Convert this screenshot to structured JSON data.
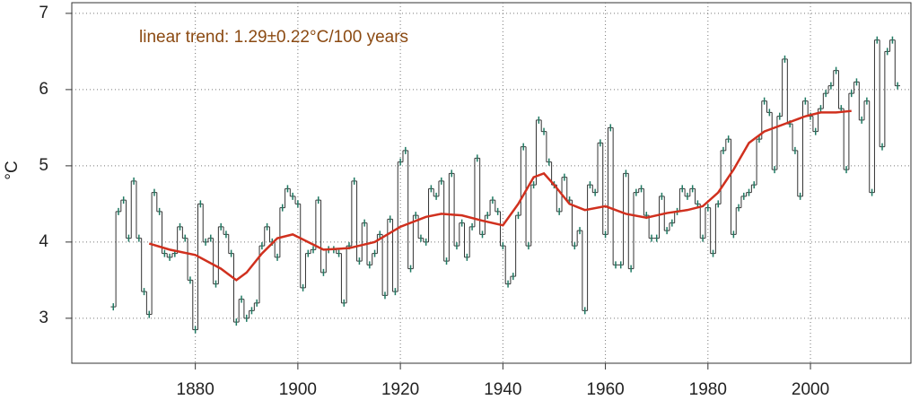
{
  "chart_data": {
    "type": "step",
    "annotation": "linear trend: 1.29±0.22°C/100 years",
    "ylabel": "°C",
    "x": [
      1864,
      1865,
      1866,
      1867,
      1868,
      1869,
      1870,
      1871,
      1872,
      1873,
      1874,
      1875,
      1876,
      1877,
      1878,
      1879,
      1880,
      1881,
      1882,
      1883,
      1884,
      1885,
      1886,
      1887,
      1888,
      1889,
      1890,
      1891,
      1892,
      1893,
      1894,
      1895,
      1896,
      1897,
      1898,
      1899,
      1900,
      1901,
      1902,
      1903,
      1904,
      1905,
      1906,
      1907,
      1908,
      1909,
      1910,
      1911,
      1912,
      1913,
      1914,
      1915,
      1916,
      1917,
      1918,
      1919,
      1920,
      1921,
      1922,
      1923,
      1924,
      1925,
      1926,
      1927,
      1928,
      1929,
      1930,
      1931,
      1932,
      1933,
      1934,
      1935,
      1936,
      1937,
      1938,
      1939,
      1940,
      1941,
      1942,
      1943,
      1944,
      1945,
      1946,
      1947,
      1948,
      1949,
      1950,
      1951,
      1952,
      1953,
      1954,
      1955,
      1956,
      1957,
      1958,
      1959,
      1960,
      1961,
      1962,
      1963,
      1964,
      1965,
      1966,
      1967,
      1968,
      1969,
      1970,
      1971,
      1972,
      1973,
      1974,
      1975,
      1976,
      1977,
      1978,
      1979,
      1980,
      1981,
      1982,
      1983,
      1984,
      1985,
      1986,
      1987,
      1988,
      1989,
      1990,
      1991,
      1992,
      1993,
      1994,
      1995,
      1996,
      1997,
      1998,
      1999,
      2000,
      2001,
      2002,
      2003,
      2004,
      2005,
      2006,
      2007,
      2008,
      2009,
      2010,
      2011,
      2012,
      2013,
      2014,
      2015,
      2016,
      2017
    ],
    "values": [
      3.15,
      4.4,
      4.55,
      4.05,
      4.8,
      4.05,
      3.35,
      3.05,
      4.65,
      4.4,
      3.85,
      3.8,
      3.85,
      4.2,
      4.05,
      3.5,
      2.85,
      4.5,
      4.0,
      4.05,
      3.45,
      4.2,
      4.1,
      3.85,
      2.95,
      3.25,
      3.0,
      3.1,
      3.2,
      3.95,
      4.2,
      4.0,
      3.8,
      4.45,
      4.7,
      4.6,
      4.5,
      3.4,
      3.85,
      3.9,
      4.55,
      3.6,
      3.9,
      3.9,
      3.85,
      3.2,
      3.95,
      4.8,
      3.75,
      4.25,
      3.7,
      3.85,
      4.1,
      3.3,
      4.3,
      3.35,
      5.05,
      5.2,
      3.65,
      4.35,
      4.05,
      4.0,
      4.7,
      4.6,
      4.8,
      3.75,
      4.9,
      3.95,
      4.25,
      3.8,
      4.2,
      5.1,
      4.1,
      4.35,
      4.55,
      4.4,
      3.95,
      3.45,
      3.55,
      4.35,
      5.25,
      3.95,
      4.75,
      5.6,
      5.45,
      5.05,
      4.75,
      4.4,
      4.85,
      4.55,
      3.95,
      4.15,
      3.1,
      4.75,
      4.65,
      5.3,
      4.1,
      5.5,
      3.7,
      3.7,
      4.9,
      3.65,
      4.65,
      4.7,
      4.35,
      4.05,
      4.05,
      4.6,
      4.15,
      4.25,
      4.4,
      4.7,
      4.6,
      4.7,
      4.5,
      4.05,
      4.45,
      3.85,
      4.5,
      5.2,
      5.35,
      4.1,
      4.45,
      4.6,
      4.65,
      4.75,
      5.35,
      5.85,
      5.7,
      4.95,
      5.65,
      6.4,
      5.55,
      5.2,
      4.6,
      5.85,
      5.65,
      5.45,
      5.75,
      5.95,
      6.05,
      6.25,
      5.75,
      4.95,
      5.95,
      6.1,
      5.6,
      5.85,
      4.65,
      6.65,
      5.25,
      6.5,
      6.65,
      6.05
    ],
    "color": "#333333",
    "marker_color": "#1f7a63",
    "smooth": {
      "color": "#d0301e",
      "x": [
        1871,
        1875,
        1880,
        1885,
        1888,
        1890,
        1893,
        1896,
        1899,
        1902,
        1905,
        1910,
        1915,
        1920,
        1925,
        1928,
        1932,
        1936,
        1940,
        1943,
        1946,
        1948,
        1950,
        1953,
        1956,
        1960,
        1964,
        1968,
        1972,
        1976,
        1979,
        1982,
        1985,
        1988,
        1991,
        1995,
        1999,
        2002,
        2005,
        2008
      ],
      "values": [
        3.98,
        3.9,
        3.83,
        3.65,
        3.5,
        3.6,
        3.85,
        4.05,
        4.1,
        4.0,
        3.9,
        3.92,
        4.0,
        4.2,
        4.33,
        4.37,
        4.35,
        4.28,
        4.22,
        4.5,
        4.85,
        4.9,
        4.75,
        4.5,
        4.42,
        4.47,
        4.37,
        4.32,
        4.38,
        4.42,
        4.47,
        4.65,
        4.95,
        5.3,
        5.45,
        5.55,
        5.65,
        5.7,
        5.7,
        5.72
      ]
    },
    "xlim": [
      1855.9,
      2019.6
    ],
    "ylim": [
      2.41,
      7.14
    ],
    "xticks": [
      1880,
      1900,
      1920,
      1940,
      1960,
      1980,
      2000
    ],
    "yticks": [
      3,
      4,
      5,
      6,
      7
    ],
    "grid": true
  }
}
